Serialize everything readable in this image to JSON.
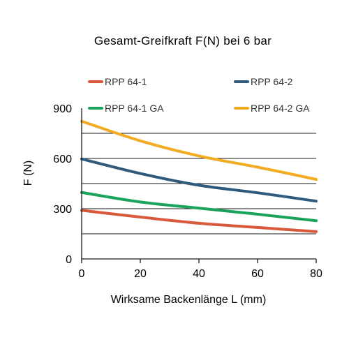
{
  "chart_data": {
    "type": "line",
    "title": "Gesamt-Greifkraft F(N) bei 6 bar",
    "xlabel": "Wirksame Backenlänge L (mm)",
    "ylabel": "F (N)",
    "xlim": [
      0,
      80
    ],
    "ylim": [
      0,
      900
    ],
    "x_ticks": [
      0,
      20,
      40,
      60,
      80
    ],
    "y_ticks": [
      0,
      300,
      600,
      900
    ],
    "grid": "horizontal",
    "legend_position": "top",
    "series": [
      {
        "name": "RPP 64-1",
        "color": "#d9593d",
        "x": [
          0,
          20,
          40,
          60,
          80
        ],
        "values": [
          290,
          250,
          213,
          188,
          163
        ]
      },
      {
        "name": "RPP 64-2",
        "color": "#2e5a7e",
        "x": [
          0,
          20,
          40,
          60,
          80
        ],
        "values": [
          597,
          510,
          440,
          395,
          345
        ]
      },
      {
        "name": "RPP 64-1 GA",
        "color": "#1aa35a",
        "x": [
          0,
          20,
          40,
          60,
          80
        ],
        "values": [
          397,
          340,
          303,
          267,
          228
        ]
      },
      {
        "name": "RPP 64-2 GA",
        "color": "#f2ac21",
        "x": [
          0,
          20,
          40,
          60,
          80
        ],
        "values": [
          822,
          705,
          615,
          548,
          475
        ]
      }
    ]
  }
}
